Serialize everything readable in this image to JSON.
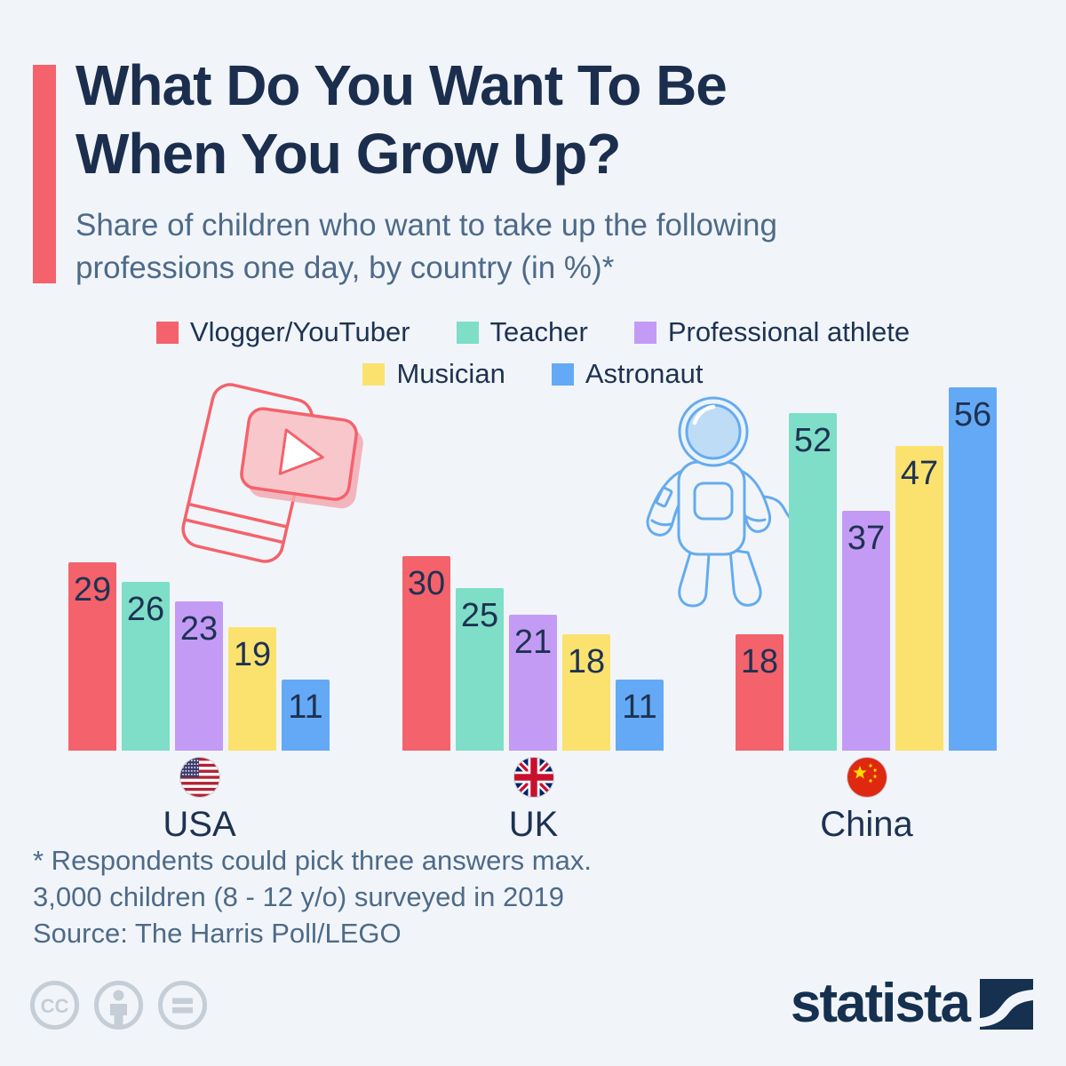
{
  "page": {
    "background": "#F1F5F9",
    "accent_color": "#F4626B",
    "title_color": "#1C2E4E",
    "subtitle_color": "#4E6A89",
    "text_color": "#1E3252",
    "muted_icon_color": "#C5CDD6",
    "brand_color": "#16304F"
  },
  "header": {
    "title_lines": [
      "What Do You Want To Be",
      "When You Grow Up?"
    ],
    "subtitle_lines": [
      "Share of children who want to take up the following",
      "professions one day, by country (in %)*"
    ]
  },
  "chart_data": {
    "type": "bar",
    "unit": "percent",
    "title": "What Do You Want To Be When You Grow Up?",
    "categories": [
      {
        "label": "USA",
        "flag": "usa-flag"
      },
      {
        "label": "UK",
        "flag": "uk-flag"
      },
      {
        "label": "China",
        "flag": "china-flag"
      }
    ],
    "series": [
      {
        "name": "Vlogger/YouTuber",
        "color": "#F4626B",
        "values": [
          29,
          30,
          18
        ]
      },
      {
        "name": "Teacher",
        "color": "#7EDEC8",
        "values": [
          26,
          25,
          52
        ]
      },
      {
        "name": "Professional athlete",
        "color": "#C39BF5",
        "values": [
          23,
          21,
          37
        ]
      },
      {
        "name": "Musician",
        "color": "#FBE26F",
        "values": [
          19,
          18,
          47
        ]
      },
      {
        "name": "Astronaut",
        "color": "#64A9F5",
        "values": [
          11,
          11,
          56
        ]
      }
    ],
    "legend_rows": [
      [
        0,
        1,
        2
      ],
      [
        3,
        4
      ]
    ],
    "value_labels_shown": true,
    "value_label_color": "#1E3252",
    "axes_hidden": true,
    "ylim": [
      0,
      60
    ]
  },
  "footnotes": {
    "line1": "* Respondents could pick three answers max.",
    "line2": "3,000 children (8 - 12 y/o) surveyed in 2019",
    "source": "Source: The Harris Poll/LEGO"
  },
  "branding": {
    "wordmark": "statista"
  },
  "license": {
    "icons": [
      "cc-icon",
      "attribution-person-icon",
      "equals-icon"
    ]
  }
}
